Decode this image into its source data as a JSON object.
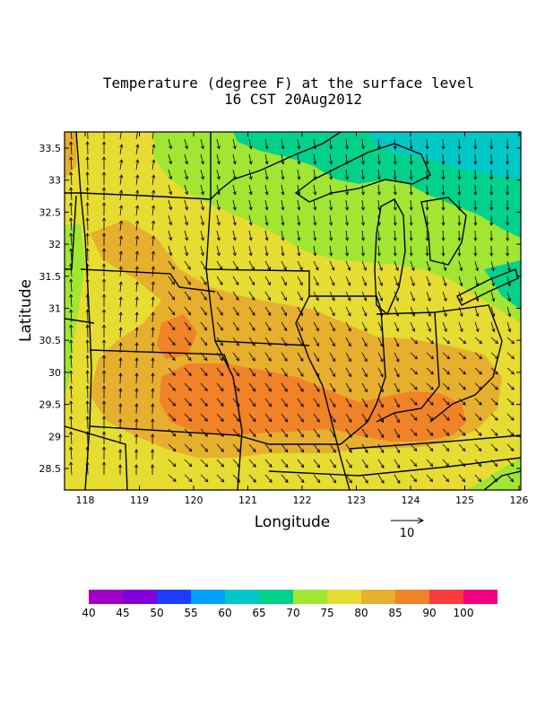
{
  "title": {
    "line1": "Temperature (degree F) at the surface level",
    "line2": "16 CST 20Aug2012"
  },
  "axes": {
    "xlabel": "Longitude",
    "ylabel": "Latitude",
    "x_ticks": [
      "118",
      "119",
      "120",
      "121",
      "122",
      "123",
      "124",
      "125",
      "126"
    ],
    "y_ticks": [
      "33.5",
      "33",
      "32.5",
      "32",
      "31.5",
      "31",
      "30.5",
      "30",
      "29.5",
      "29",
      "28.5"
    ]
  },
  "vector_key": {
    "label": "10"
  },
  "colorbar": {
    "labels": [
      "40",
      "45",
      "50",
      "55",
      "60",
      "65",
      "70",
      "75",
      "80",
      "85",
      "90",
      "100"
    ],
    "colors": [
      "#a000c8",
      "#8200dc",
      "#1e3cff",
      "#00a0ff",
      "#00c8c8",
      "#00d28c",
      "#a0e632",
      "#e6dc32",
      "#e6af2d",
      "#f08228",
      "#fa3c3c",
      "#f00082"
    ]
  },
  "field_colors": {
    "c65": "#00d28c",
    "c70": "#a0e632",
    "c75": "#e6dc32",
    "c80": "#e6af2d",
    "c85": "#f08228",
    "c60": "#00c8c8"
  }
}
